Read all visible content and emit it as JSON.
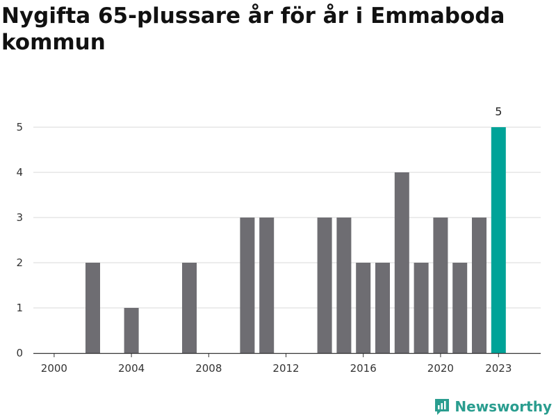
{
  "chart_data": {
    "type": "bar",
    "title": "Nygifta 65-plussare år för år i Emmaboda kommun",
    "xlabel": "",
    "ylabel": "",
    "categories": [
      "2000",
      "2001",
      "2002",
      "2003",
      "2004",
      "2005",
      "2006",
      "2007",
      "2008",
      "2009",
      "2010",
      "2011",
      "2012",
      "2013",
      "2014",
      "2015",
      "2016",
      "2017",
      "2018",
      "2019",
      "2020",
      "2021",
      "2022",
      "2023"
    ],
    "values": [
      0,
      0,
      2,
      0,
      1,
      0,
      0,
      2,
      0,
      0,
      3,
      3,
      0,
      0,
      3,
      3,
      2,
      2,
      4,
      2,
      3,
      2,
      3,
      5
    ],
    "x_tick_labels": [
      "2000",
      "2004",
      "2008",
      "2012",
      "2016",
      "2020",
      "2023"
    ],
    "y_ticks": [
      0,
      1,
      2,
      3,
      4,
      5
    ],
    "ylim": [
      0,
      5
    ],
    "highlight_category": "2023",
    "highlight_label": "5",
    "grid": true,
    "colors": {
      "bar": "#6e6d72",
      "highlight": "#00a398",
      "grid": "#d9d9d9",
      "axis": "#333333"
    }
  },
  "brand": {
    "name": "Newsworthy",
    "icon": "newsworthy-logo-icon",
    "color": "#2a9d8f"
  }
}
